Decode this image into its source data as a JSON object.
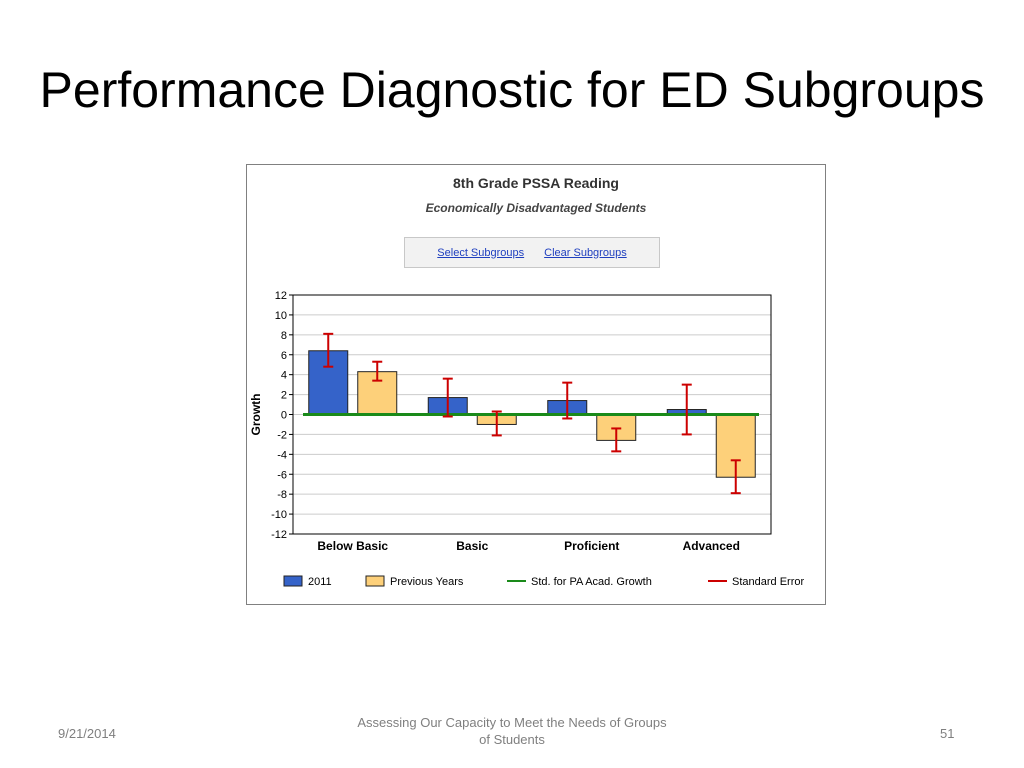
{
  "slide": {
    "title": "Performance Diagnostic for ED Subgroups",
    "footer_date": "9/21/2014",
    "footer_center": "Assessing Our Capacity to Meet the  Needs of Groups of Students",
    "page_number": "51"
  },
  "controls": {
    "select_subgroups": "Select Subgroups",
    "clear_subgroups": "Clear Subgroups"
  },
  "colors": {
    "series_2011": "#3563c9",
    "series_previous": "#fdd07a",
    "growth_line": "#1a8a1a",
    "error_bar": "#cc0000",
    "grid": "#cccccc"
  },
  "chart_data": {
    "type": "bar",
    "title": "8th Grade PSSA Reading",
    "subtitle": "Economically Disadvantaged Students",
    "xlabel": "",
    "ylabel": "Growth",
    "ylim": [
      -12,
      12
    ],
    "yticks": [
      12,
      10,
      8,
      6,
      4,
      2,
      0,
      -2,
      -4,
      -6,
      -8,
      -10,
      -12
    ],
    "grid": true,
    "legend_position": "bottom",
    "categories": [
      "Below Basic",
      "Basic",
      "Proficient",
      "Advanced"
    ],
    "series": [
      {
        "name": "2011",
        "values": [
          6.4,
          1.7,
          1.4,
          0.5
        ],
        "error_low": [
          4.8,
          -0.2,
          -0.4,
          -2.0
        ],
        "error_high": [
          8.1,
          3.6,
          3.2,
          3.0
        ]
      },
      {
        "name": "Previous Years",
        "values": [
          4.3,
          -1.0,
          -2.6,
          -6.3
        ],
        "error_low": [
          3.4,
          -2.1,
          -3.7,
          -7.9
        ],
        "error_high": [
          5.3,
          0.3,
          -1.4,
          -4.6
        ]
      }
    ],
    "reference_line": {
      "name": "Std. for PA Acad. Growth",
      "value": 0
    },
    "error_legend": "Standard Error"
  }
}
